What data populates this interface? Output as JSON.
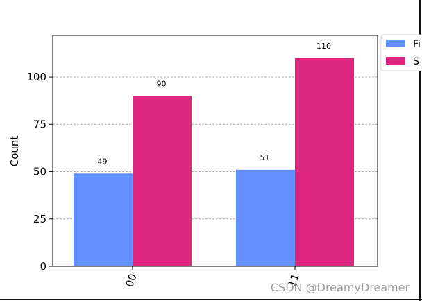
{
  "chart_data": {
    "type": "bar",
    "categories": [
      "00",
      "11"
    ],
    "series": [
      {
        "name": "Fi",
        "values": [
          49,
          51
        ],
        "color": "#648fff"
      },
      {
        "name": "S",
        "values": [
          90,
          110
        ],
        "color": "#dc267f"
      }
    ],
    "ylabel": "Count",
    "ylim": [
      0,
      122
    ],
    "yticks": [
      0,
      25,
      50,
      75,
      100
    ],
    "grid": "horizontal-dashed",
    "legend": "top-right-outside",
    "data_labels": true
  },
  "watermark": "CSDN @DreamyDreamer"
}
